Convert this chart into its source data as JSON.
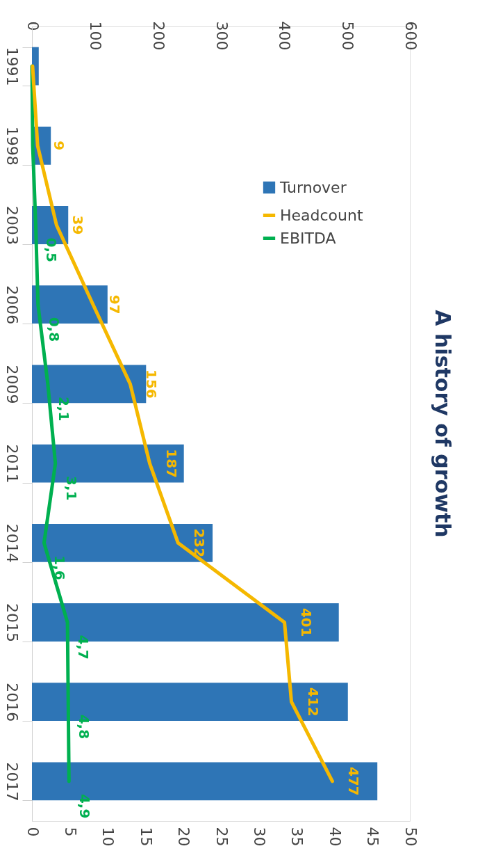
{
  "chart_data": {
    "type": "bar",
    "orientation": "horizontal",
    "title": "A history of growth",
    "categories": [
      "1991",
      "1998",
      "2003",
      "2006",
      "2009",
      "2011",
      "2014",
      "2015",
      "2016",
      "2017"
    ],
    "series": [
      {
        "name": "Turnover",
        "color": "#2e75b6",
        "values": [
          0.9,
          2.5,
          4.8,
          10.0,
          15.1,
          20.1,
          23.9,
          40.6,
          41.8,
          45.7
        ]
      },
      {
        "name": "Headcount",
        "type": "line",
        "axis": "x2",
        "color": "#f5b800",
        "values": [
          1,
          9,
          39,
          97,
          156,
          187,
          232,
          401,
          412,
          477
        ],
        "value_labels": [
          null,
          "9",
          "39",
          "97",
          "156",
          "187",
          "232",
          "401",
          "412",
          "477"
        ]
      },
      {
        "name": "EBITDA",
        "type": "line",
        "color": "#00b050",
        "values": [
          0,
          0.1,
          0.5,
          0.8,
          2.1,
          3.1,
          1.6,
          4.7,
          4.8,
          4.9
        ],
        "value_labels": [
          null,
          null,
          "0,5",
          "0,8",
          "2,1",
          "3,1",
          "1,6",
          "4,7",
          "4,8",
          "4,9"
        ]
      }
    ],
    "xlim": [
      0,
      50
    ],
    "xticks": [
      0,
      5,
      10,
      15,
      20,
      25,
      30,
      35,
      40,
      45,
      50
    ],
    "x2lim": [
      0,
      600
    ],
    "x2ticks": [
      0,
      100,
      200,
      300,
      400,
      500,
      600
    ],
    "grid": false,
    "legend": "top right",
    "marker": "none",
    "line_style": "solid"
  }
}
